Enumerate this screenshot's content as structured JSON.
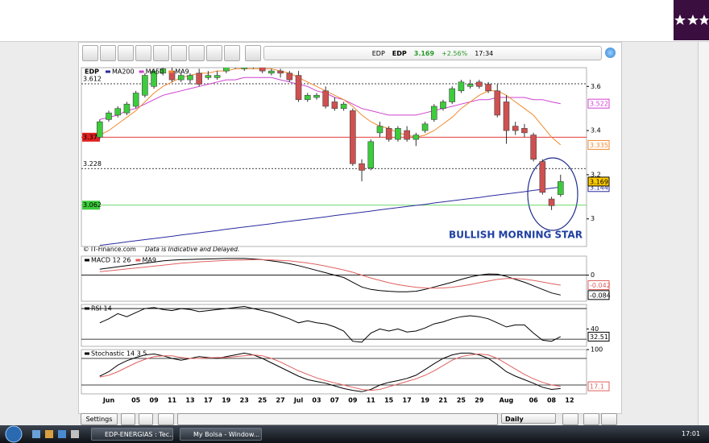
{
  "toolbar": {
    "symbol": "EDP",
    "name": "EDP",
    "price": "3.169",
    "change": "+2.56%",
    "time": "17:34"
  },
  "controls": {
    "settings": "Settings",
    "period": "Daily"
  },
  "taskbar": {
    "windows": [
      "EDP-ENERGIAS : Tec...",
      "My Bolsa - Window..."
    ],
    "clock": "17:01"
  },
  "chart_data": [
    {
      "type": "candlestick",
      "title": "EDP",
      "annotation": "BULLISH MORNING STAR",
      "source": "© IT-Finance.com",
      "disclaimer": "Data is Indicative and Delayed.",
      "categories": [
        null,
        "Jun",
        null,
        null,
        "05",
        null,
        "09",
        null,
        "11",
        null,
        "13",
        null,
        "17",
        null,
        "19",
        null,
        "23",
        null,
        "25",
        null,
        "27",
        null,
        "Jul",
        null,
        "03",
        null,
        "07",
        null,
        "09",
        null,
        "11",
        null,
        "15",
        null,
        "17",
        null,
        "19",
        null,
        "21",
        null,
        "25",
        null,
        "29",
        null,
        null,
        "Aug",
        null,
        null,
        "06",
        null,
        "08",
        null,
        "12"
      ],
      "open": [
        3.37,
        3.45,
        3.47,
        3.48,
        3.51,
        3.56,
        3.6,
        3.66,
        3.67,
        3.63,
        3.63,
        3.66,
        3.64,
        3.64,
        3.67,
        3.7,
        3.68,
        3.69,
        3.7,
        3.66,
        3.67,
        3.66,
        3.65,
        3.54,
        3.55,
        3.58,
        3.53,
        3.5,
        3.49,
        3.25,
        3.23,
        3.39,
        3.41,
        3.36,
        3.4,
        3.36,
        3.4,
        3.45,
        3.5,
        3.53,
        3.58,
        3.6,
        3.62,
        3.61,
        3.58,
        3.53,
        3.42,
        3.41,
        3.38,
        3.26,
        3.09,
        3.11,
        null
      ],
      "high": [
        3.45,
        3.49,
        3.51,
        3.53,
        3.58,
        3.66,
        3.68,
        3.69,
        3.69,
        3.66,
        3.66,
        3.68,
        3.67,
        3.67,
        3.7,
        3.71,
        3.71,
        3.72,
        3.71,
        3.68,
        3.68,
        3.67,
        3.67,
        3.57,
        3.57,
        3.6,
        3.55,
        3.53,
        3.5,
        3.27,
        3.36,
        3.44,
        3.42,
        3.42,
        3.42,
        3.39,
        3.44,
        3.52,
        3.54,
        3.6,
        3.63,
        3.63,
        3.63,
        3.62,
        3.61,
        3.56,
        3.44,
        3.43,
        3.39,
        3.27,
        3.1,
        3.2,
        null
      ],
      "low": [
        3.36,
        3.44,
        3.46,
        3.47,
        3.5,
        3.55,
        3.59,
        3.65,
        3.62,
        3.62,
        3.61,
        3.6,
        3.63,
        3.63,
        3.66,
        3.68,
        3.67,
        3.68,
        3.66,
        3.65,
        3.64,
        3.62,
        3.53,
        3.53,
        3.54,
        3.5,
        3.49,
        3.49,
        3.24,
        3.17,
        3.22,
        3.37,
        3.35,
        3.35,
        3.35,
        3.33,
        3.39,
        3.44,
        3.49,
        3.52,
        3.57,
        3.59,
        3.59,
        3.57,
        3.46,
        3.34,
        3.38,
        3.37,
        3.26,
        3.11,
        3.04,
        3.1,
        null
      ],
      "close": [
        3.44,
        3.48,
        3.5,
        3.52,
        3.57,
        3.65,
        3.67,
        3.68,
        3.63,
        3.65,
        3.65,
        3.61,
        3.65,
        3.65,
        3.69,
        3.69,
        3.7,
        3.7,
        3.67,
        3.67,
        3.66,
        3.63,
        3.54,
        3.56,
        3.56,
        3.51,
        3.5,
        3.52,
        3.25,
        3.22,
        3.35,
        3.42,
        3.36,
        3.41,
        3.36,
        3.38,
        3.43,
        3.51,
        3.53,
        3.59,
        3.62,
        3.61,
        3.6,
        3.58,
        3.47,
        3.4,
        3.4,
        3.39,
        3.27,
        3.12,
        3.06,
        3.169,
        null
      ],
      "up_color": "#3ccc3c",
      "down_color": "#d05050",
      "last_box_color": "#ffcc00",
      "lines": [
        {
          "name": "MA200",
          "color": "#2a2aa0",
          "box": true,
          "values": [
            2.88,
            2.885,
            2.89,
            2.896,
            2.901,
            2.906,
            2.911,
            2.916,
            2.921,
            2.927,
            2.932,
            2.937,
            2.942,
            2.947,
            2.953,
            2.958,
            2.963,
            2.968,
            2.973,
            2.978,
            2.984,
            2.989,
            2.994,
            2.999,
            3.004,
            3.009,
            3.015,
            3.02,
            3.025,
            3.03,
            3.035,
            3.041,
            3.046,
            3.051,
            3.056,
            3.061,
            3.066,
            3.072,
            3.077,
            3.082,
            3.087,
            3.092,
            3.097,
            3.103,
            3.108,
            3.113,
            3.118,
            3.123,
            3.129,
            3.134,
            3.139,
            3.144,
            null
          ]
        },
        {
          "name": "MA50",
          "color": "#d040d0",
          "box": true,
          "values": [
            3.45,
            3.46,
            3.47,
            3.49,
            3.5,
            3.52,
            3.54,
            3.56,
            3.57,
            3.58,
            3.59,
            3.6,
            3.61,
            3.62,
            3.63,
            3.63,
            3.64,
            3.64,
            3.64,
            3.64,
            3.63,
            3.62,
            3.61,
            3.6,
            3.58,
            3.57,
            3.55,
            3.54,
            3.52,
            3.5,
            3.49,
            3.48,
            3.47,
            3.47,
            3.47,
            3.47,
            3.48,
            3.49,
            3.5,
            3.51,
            3.52,
            3.53,
            3.54,
            3.54,
            3.55,
            3.55,
            3.55,
            3.55,
            3.54,
            3.54,
            3.53,
            3.522,
            null
          ]
        },
        {
          "name": "MA9",
          "color": "#f08a30",
          "box": true,
          "values": [
            3.38,
            3.4,
            3.43,
            3.46,
            3.49,
            3.53,
            3.57,
            3.6,
            3.62,
            3.64,
            3.65,
            3.66,
            3.66,
            3.67,
            3.67,
            3.68,
            3.68,
            3.68,
            3.68,
            3.68,
            3.67,
            3.66,
            3.64,
            3.62,
            3.6,
            3.58,
            3.56,
            3.54,
            3.51,
            3.47,
            3.44,
            3.42,
            3.41,
            3.39,
            3.38,
            3.37,
            3.38,
            3.4,
            3.43,
            3.46,
            3.5,
            3.53,
            3.56,
            3.58,
            3.58,
            3.56,
            3.53,
            3.5,
            3.47,
            3.42,
            3.37,
            3.335,
            null
          ]
        }
      ],
      "levels": [
        {
          "value": 3.612,
          "color": "#000000",
          "style": "dashed",
          "label_box": false
        },
        {
          "value": 3.37,
          "color": "#e02020",
          "style": "solid",
          "label_box": true
        },
        {
          "value": 3.228,
          "color": "#000000",
          "style": "dashed",
          "label_box": false
        },
        {
          "value": 3.062,
          "color": "#3ccc3c",
          "style": "solid",
          "label_box": true
        }
      ],
      "ylim": [
        2.875,
        3.685
      ],
      "yticks": [
        3,
        3.2,
        3.4,
        3.6
      ]
    },
    {
      "type": "line",
      "series": [
        {
          "name": "MACD 12 26",
          "color": "#000000",
          "box": true,
          "values": [
            0.025,
            0.03,
            0.035,
            0.04,
            0.045,
            0.05,
            0.055,
            0.06,
            0.063,
            0.065,
            0.066,
            0.067,
            0.068,
            0.069,
            0.07,
            0.07,
            0.07,
            0.068,
            0.065,
            0.06,
            0.055,
            0.048,
            0.04,
            0.03,
            0.02,
            0.01,
            0.0,
            -0.01,
            -0.03,
            -0.05,
            -0.06,
            -0.065,
            -0.068,
            -0.07,
            -0.07,
            -0.068,
            -0.06,
            -0.05,
            -0.04,
            -0.03,
            -0.018,
            -0.008,
            0.0,
            0.005,
            0.004,
            -0.005,
            -0.018,
            -0.03,
            -0.045,
            -0.06,
            -0.075,
            -0.084,
            null
          ]
        },
        {
          "name": "MA9",
          "color": "#e06060",
          "box": true,
          "values": [
            0.015,
            0.018,
            0.022,
            0.026,
            0.03,
            0.034,
            0.038,
            0.042,
            0.046,
            0.05,
            0.053,
            0.056,
            0.058,
            0.06,
            0.062,
            0.063,
            0.064,
            0.065,
            0.065,
            0.064,
            0.062,
            0.06,
            0.056,
            0.051,
            0.045,
            0.038,
            0.03,
            0.022,
            0.012,
            0.0,
            -0.012,
            -0.022,
            -0.032,
            -0.04,
            -0.046,
            -0.051,
            -0.054,
            -0.055,
            -0.054,
            -0.051,
            -0.046,
            -0.04,
            -0.032,
            -0.025,
            -0.018,
            -0.014,
            -0.014,
            -0.017,
            -0.022,
            -0.029,
            -0.036,
            -0.042,
            null
          ]
        }
      ],
      "ylim": [
        -0.11,
        0.08
      ],
      "yticks": [
        0
      ],
      "grid": true
    },
    {
      "type": "line",
      "series": [
        {
          "name": "RSI 14",
          "color": "#000000",
          "box": true,
          "values": [
            46,
            50,
            55,
            52,
            56,
            60,
            61,
            59,
            58,
            60,
            59,
            57,
            58,
            59,
            60,
            61,
            62,
            60,
            58,
            56,
            53,
            50,
            46,
            48,
            46,
            45,
            42,
            38,
            28,
            27,
            36,
            40,
            38,
            40,
            37,
            38,
            41,
            45,
            47,
            50,
            52,
            53,
            52,
            50,
            46,
            42,
            44,
            44,
            36,
            29,
            28,
            32.51,
            null
          ]
        }
      ],
      "ylim": [
        23,
        64
      ],
      "yticks": [
        40
      ],
      "levels": [
        30,
        60
      ]
    },
    {
      "type": "line",
      "series": [
        {
          "name": "Stochastic 14 3 5",
          "color": "#000000",
          "values": [
            40,
            50,
            65,
            75,
            82,
            88,
            90,
            86,
            80,
            76,
            80,
            84,
            82,
            80,
            84,
            88,
            92,
            88,
            80,
            70,
            60,
            50,
            40,
            32,
            28,
            24,
            18,
            12,
            8,
            5,
            10,
            20,
            26,
            30,
            35,
            42,
            55,
            68,
            80,
            88,
            92,
            92,
            88,
            80,
            66,
            50,
            40,
            32,
            24,
            15,
            10,
            12,
            null
          ]
        },
        {
          "color": "#e06060",
          "box": true,
          "values": [
            38,
            42,
            50,
            60,
            70,
            78,
            84,
            86,
            86,
            82,
            80,
            80,
            81,
            82,
            82,
            84,
            86,
            88,
            86,
            80,
            72,
            62,
            52,
            44,
            36,
            30,
            25,
            20,
            15,
            10,
            8,
            10,
            16,
            22,
            28,
            34,
            42,
            52,
            64,
            76,
            84,
            88,
            90,
            88,
            80,
            68,
            56,
            44,
            34,
            26,
            20,
            17.1,
            null
          ]
        }
      ],
      "ylim": [
        0,
        100
      ],
      "yticks": [
        100
      ],
      "levels": [
        20,
        80
      ]
    }
  ]
}
